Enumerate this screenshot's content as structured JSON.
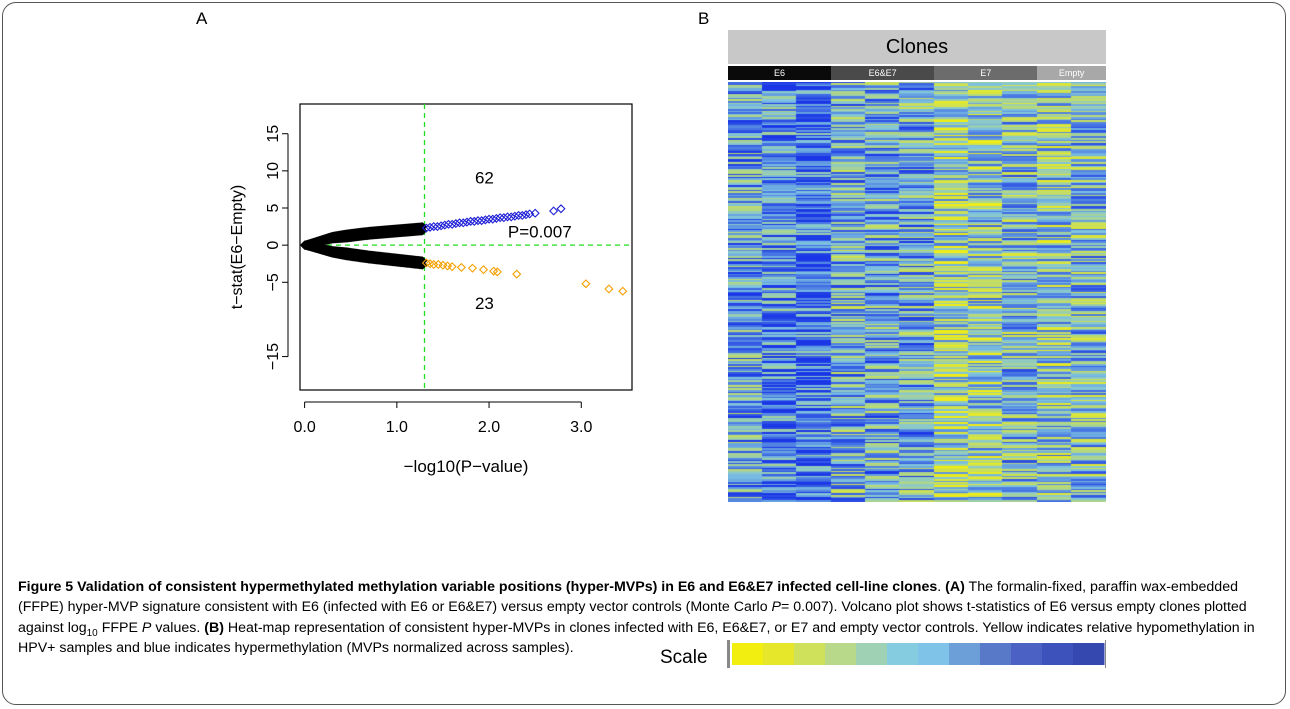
{
  "panels": {
    "a_label": "A",
    "b_label": "B"
  },
  "volcano": {
    "chart_data": {
      "type": "scatter",
      "xlabel": "−log10(P−value)",
      "ylabel": "t−stat(E6−Empty)",
      "xlim": [
        -0.05,
        3.55
      ],
      "ylim": [
        -19.5,
        19
      ],
      "x_ticks": [
        {
          "v": 0.0,
          "label": "0.0"
        },
        {
          "v": 1.0,
          "label": "1.0"
        },
        {
          "v": 2.0,
          "label": "2.0"
        },
        {
          "v": 3.0,
          "label": "3.0"
        }
      ],
      "y_ticks": [
        {
          "v": 15,
          "label": "15"
        },
        {
          "v": 10,
          "label": "10"
        },
        {
          "v": 5,
          "label": "5"
        },
        {
          "v": 0,
          "label": "0"
        },
        {
          "v": -5,
          "label": "−5"
        },
        {
          "v": -15,
          "label": "−15"
        }
      ],
      "threshold_x": 1.3,
      "threshold_y": 0,
      "threshold_color": "#22dd22",
      "annotations": [
        {
          "text": "62",
          "x": 1.95,
          "y": 8.3
        },
        {
          "text": "23",
          "x": 1.95,
          "y": -8.6
        },
        {
          "text": "P=0.007",
          "x": 2.55,
          "y": 1.0
        }
      ],
      "series": [
        {
          "color": "#000000",
          "trend": [
            {
              "x": 0.0,
              "y": 0.0
            },
            {
              "x": 0.3,
              "y": 1.0
            },
            {
              "x": 0.7,
              "y": 1.6
            },
            {
              "x": 1.28,
              "y": 2.2
            }
          ],
          "spread": 0.55
        },
        {
          "color": "#000000",
          "trend": [
            {
              "x": 0.0,
              "y": 0.0
            },
            {
              "x": 0.3,
              "y": -0.9
            },
            {
              "x": 0.7,
              "y": -1.6
            },
            {
              "x": 1.28,
              "y": -2.4
            }
          ],
          "spread": 0.55
        },
        {
          "color": "#1f1fd6",
          "points": [
            [
              1.32,
              2.3
            ],
            [
              1.36,
              2.4
            ],
            [
              1.4,
              2.5
            ],
            [
              1.44,
              2.5
            ],
            [
              1.48,
              2.6
            ],
            [
              1.52,
              2.7
            ],
            [
              1.56,
              2.8
            ],
            [
              1.6,
              2.8
            ],
            [
              1.64,
              2.9
            ],
            [
              1.68,
              3.0
            ],
            [
              1.72,
              3.0
            ],
            [
              1.76,
              3.1
            ],
            [
              1.8,
              3.2
            ],
            [
              1.84,
              3.2
            ],
            [
              1.88,
              3.3
            ],
            [
              1.92,
              3.3
            ],
            [
              1.96,
              3.4
            ],
            [
              2.0,
              3.5
            ],
            [
              2.04,
              3.5
            ],
            [
              2.08,
              3.6
            ],
            [
              2.12,
              3.7
            ],
            [
              2.16,
              3.7
            ],
            [
              2.2,
              3.8
            ],
            [
              2.24,
              3.8
            ],
            [
              2.28,
              3.9
            ],
            [
              2.32,
              4.0
            ],
            [
              2.36,
              4.0
            ],
            [
              2.4,
              4.1
            ],
            [
              2.44,
              4.2
            ],
            [
              2.5,
              4.3
            ],
            [
              2.7,
              4.6
            ],
            [
              2.78,
              4.9
            ]
          ]
        },
        {
          "color": "#f5a000",
          "points": [
            [
              1.32,
              -2.4
            ],
            [
              1.36,
              -2.5
            ],
            [
              1.4,
              -2.6
            ],
            [
              1.45,
              -2.6
            ],
            [
              1.5,
              -2.7
            ],
            [
              1.55,
              -2.8
            ],
            [
              1.6,
              -2.9
            ],
            [
              1.7,
              -3.0
            ],
            [
              1.82,
              -3.1
            ],
            [
              1.94,
              -3.3
            ],
            [
              2.05,
              -3.5
            ],
            [
              2.09,
              -3.6
            ],
            [
              2.3,
              -3.9
            ],
            [
              3.05,
              -5.2
            ],
            [
              3.3,
              -5.9
            ],
            [
              3.45,
              -6.2
            ]
          ]
        }
      ]
    }
  },
  "heatmap": {
    "title": "Clones",
    "groups": [
      {
        "label": "E6",
        "color": "#0a0a0a",
        "columns": 3
      },
      {
        "label": "E6&E7",
        "color": "#4a4a4a",
        "columns": 3
      },
      {
        "label": "E7",
        "color": "#6c6c6c",
        "columns": 3
      },
      {
        "label": "Empty",
        "color": "#a8a8a8",
        "columns": 2
      }
    ],
    "chart_data": {
      "type": "heatmap",
      "columns": 11,
      "rows": 260,
      "palette_low": "#f2ee10",
      "palette_mid": "#7fc4e0",
      "palette_high": "#1a36e6"
    }
  },
  "scale": {
    "label": "Scale",
    "colors": [
      "#f2ee10",
      "#e6e62a",
      "#cfe05a",
      "#b8d88a",
      "#9fd2b4",
      "#86cce0",
      "#7fc4e8",
      "#6c9ed8",
      "#5878c8",
      "#4b62c4",
      "#3e52bc",
      "#3448b0"
    ]
  },
  "caption": {
    "fig_title": "Figure 5 Validation of consistent hypermethylated methylation variable positions (hyper-MVPs) in E6 and E6&E7 infected cell-line clones",
    "fig_title_end": ".",
    "a_tag": "(A)",
    "a_text_1": " The formalin-fixed, paraffin wax-embedded (FFPE) hyper-MVP signature consistent with E6 (infected with E6 or E6&E7) versus empty vector controls (Monte Carlo ",
    "a_italic_p": "P",
    "a_text_2": "= 0.007). Volcano plot shows t-statistics of E6 versus empty clones plotted against log",
    "a_sub": "10",
    "a_text_3": " FFPE ",
    "a_italic_p2": "P",
    "a_text_4": " values. ",
    "b_tag": "(B)",
    "b_text": " Heat-map representation of consistent hyper-MVPs in clones infected with E6, E6&E7, or E7 and empty vector controls. Yellow indicates relative hypomethylation in HPV+ samples and blue indicates hypermethylation (MVPs normalized across samples)."
  }
}
